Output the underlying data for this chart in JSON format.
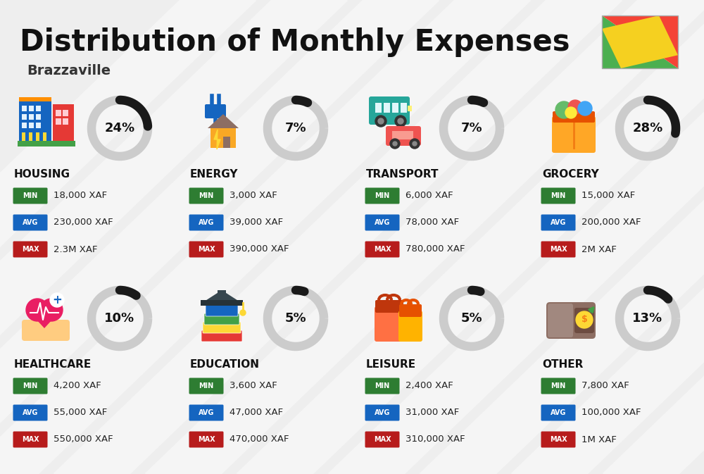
{
  "title": "Distribution of Monthly Expenses",
  "subtitle": "Brazzaville",
  "background_color": "#eeeeee",
  "categories": [
    {
      "name": "HOUSING",
      "percent": 24,
      "min": "18,000 XAF",
      "avg": "230,000 XAF",
      "max": "2.3M XAF",
      "row": 0,
      "col": 0
    },
    {
      "name": "ENERGY",
      "percent": 7,
      "min": "3,000 XAF",
      "avg": "39,000 XAF",
      "max": "390,000 XAF",
      "row": 0,
      "col": 1
    },
    {
      "name": "TRANSPORT",
      "percent": 7,
      "min": "6,000 XAF",
      "avg": "78,000 XAF",
      "max": "780,000 XAF",
      "row": 0,
      "col": 2
    },
    {
      "name": "GROCERY",
      "percent": 28,
      "min": "15,000 XAF",
      "avg": "200,000 XAF",
      "max": "2M XAF",
      "row": 0,
      "col": 3
    },
    {
      "name": "HEALTHCARE",
      "percent": 10,
      "min": "4,200 XAF",
      "avg": "55,000 XAF",
      "max": "550,000 XAF",
      "row": 1,
      "col": 0
    },
    {
      "name": "EDUCATION",
      "percent": 5,
      "min": "3,600 XAF",
      "avg": "47,000 XAF",
      "max": "470,000 XAF",
      "row": 1,
      "col": 1
    },
    {
      "name": "LEISURE",
      "percent": 5,
      "min": "2,400 XAF",
      "avg": "31,000 XAF",
      "max": "310,000 XAF",
      "row": 1,
      "col": 2
    },
    {
      "name": "OTHER",
      "percent": 13,
      "min": "7,800 XAF",
      "avg": "100,000 XAF",
      "max": "1M XAF",
      "row": 1,
      "col": 3
    }
  ],
  "min_color": "#2E7D32",
  "avg_color": "#1565C0",
  "max_color": "#B71C1C",
  "donut_dark": "#1a1a1a",
  "donut_light": "#cccccc",
  "title_color": "#111111",
  "subtitle_color": "#333333",
  "name_color": "#111111",
  "value_color": "#222222",
  "stripe_color": "#ffffff",
  "flag_green": "#4CAF50",
  "flag_yellow": "#F5D020",
  "flag_red": "#F44336"
}
